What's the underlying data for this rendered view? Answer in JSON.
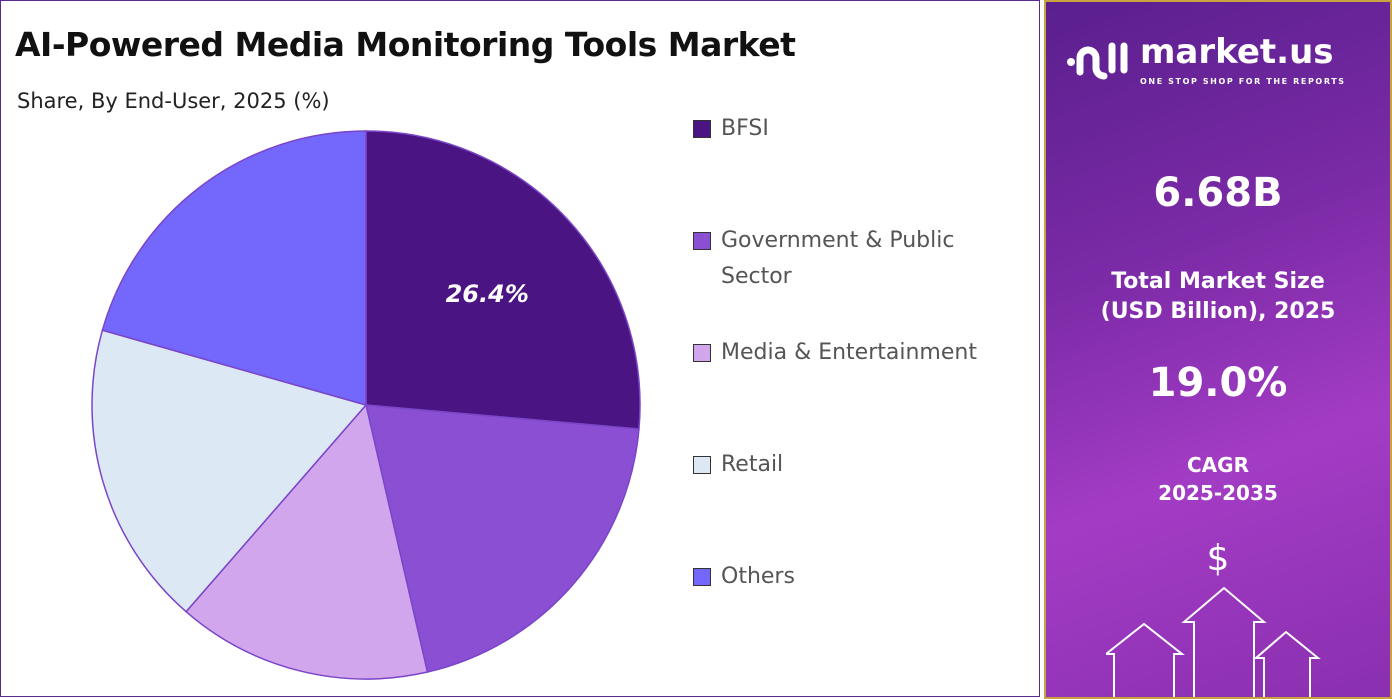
{
  "chart_data": {
    "type": "pie",
    "title": "AI-Powered Media Monitoring Tools Market",
    "subtitle": "Share, By End-User, 2025 (%)",
    "categories": [
      "BFSI",
      "Government & Public Sector",
      "Media & Entertainment",
      "Retail",
      "Others"
    ],
    "values": [
      26.4,
      20.0,
      15.0,
      18.0,
      20.6
    ],
    "colors": [
      "#4b1483",
      "#8a4fd2",
      "#d2a6ec",
      "#dde8f5",
      "#7467fb"
    ],
    "data_labels": [
      "26.4%",
      "",
      "",
      "",
      ""
    ],
    "legend_position": "right"
  },
  "panel": {
    "brand": "market.us",
    "tagline": "ONE STOP SHOP FOR THE REPORTS",
    "market_size": "6.68B",
    "market_size_label_1": "Total Market Size",
    "market_size_label_2": "(USD Billion), 2025",
    "cagr": "19.0%",
    "cagr_label_1": "CAGR",
    "cagr_label_2": "2025-2035",
    "dollar": "$"
  }
}
